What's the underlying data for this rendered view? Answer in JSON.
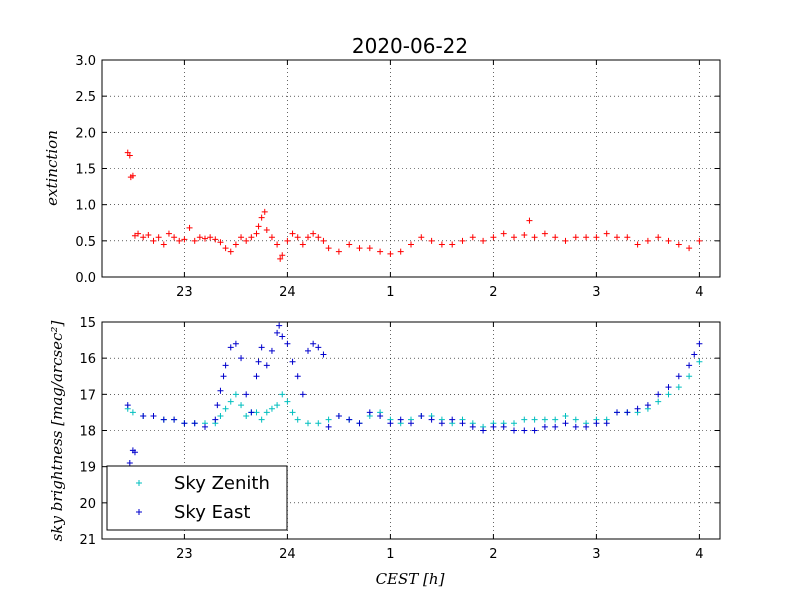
{
  "chart_data": [
    {
      "type": "scatter",
      "title": "2020-06-22",
      "ylabel": "extinction",
      "xlabel": "",
      "xlim": [
        22.2,
        28.2
      ],
      "ylim": [
        0.0,
        3.0
      ],
      "x_ticks": [
        23,
        24,
        25,
        26,
        27,
        28
      ],
      "x_tick_labels": [
        "23",
        "24",
        "1",
        "2",
        "3",
        "4"
      ],
      "y_ticks": [
        0.0,
        0.5,
        1.0,
        1.5,
        2.0,
        2.5,
        3.0
      ],
      "y_tick_labels": [
        "0.0",
        "0.5",
        "1.0",
        "1.5",
        "2.0",
        "2.5",
        "3.0"
      ],
      "grid": true,
      "marker": "+",
      "series": [
        {
          "color": "#ff0000",
          "x": [
            22.45,
            22.47,
            22.48,
            22.5,
            22.52,
            22.55,
            22.6,
            22.65,
            22.7,
            22.75,
            22.8,
            22.85,
            22.9,
            22.95,
            23.0,
            23.05,
            23.1,
            23.15,
            23.2,
            23.25,
            23.3,
            23.35,
            23.4,
            23.45,
            23.5,
            23.55,
            23.6,
            23.65,
            23.7,
            23.72,
            23.75,
            23.78,
            23.8,
            23.85,
            23.9,
            23.93,
            23.95,
            24.0,
            24.05,
            24.1,
            24.15,
            24.2,
            24.25,
            24.3,
            24.35,
            24.4,
            24.5,
            24.6,
            24.7,
            24.8,
            24.9,
            25.0,
            25.1,
            25.2,
            25.3,
            25.4,
            25.5,
            25.6,
            25.7,
            25.8,
            25.9,
            26.0,
            26.1,
            26.2,
            26.3,
            26.35,
            26.4,
            26.5,
            26.6,
            26.7,
            26.8,
            26.9,
            27.0,
            27.1,
            27.2,
            27.3,
            27.4,
            27.5,
            27.6,
            27.7,
            27.8,
            27.9,
            28.0
          ],
          "y": [
            1.72,
            1.68,
            1.38,
            1.4,
            0.57,
            0.6,
            0.55,
            0.58,
            0.5,
            0.55,
            0.45,
            0.6,
            0.55,
            0.5,
            0.52,
            0.68,
            0.5,
            0.55,
            0.53,
            0.55,
            0.52,
            0.48,
            0.4,
            0.35,
            0.45,
            0.55,
            0.5,
            0.55,
            0.6,
            0.7,
            0.82,
            0.9,
            0.65,
            0.55,
            0.45,
            0.25,
            0.3,
            0.5,
            0.6,
            0.55,
            0.45,
            0.55,
            0.6,
            0.55,
            0.5,
            0.4,
            0.35,
            0.45,
            0.4,
            0.4,
            0.35,
            0.32,
            0.35,
            0.45,
            0.55,
            0.5,
            0.45,
            0.45,
            0.5,
            0.55,
            0.5,
            0.55,
            0.6,
            0.55,
            0.58,
            0.78,
            0.55,
            0.6,
            0.55,
            0.5,
            0.55,
            0.55,
            0.55,
            0.6,
            0.55,
            0.55,
            0.45,
            0.5,
            0.55,
            0.5,
            0.45,
            0.4,
            0.5
          ]
        }
      ]
    },
    {
      "type": "scatter",
      "title": "",
      "ylabel": "sky brightness [mag/arcsec²]",
      "xlabel": "CEST [h]",
      "xlim": [
        22.2,
        28.2
      ],
      "ylim": [
        21,
        15
      ],
      "inverted_y": true,
      "x_ticks": [
        23,
        24,
        25,
        26,
        27,
        28
      ],
      "x_tick_labels": [
        "23",
        "24",
        "1",
        "2",
        "3",
        "4"
      ],
      "y_ticks": [
        15,
        16,
        17,
        18,
        19,
        20,
        21
      ],
      "y_tick_labels": [
        "15",
        "16",
        "17",
        "18",
        "19",
        "20",
        "21"
      ],
      "grid": true,
      "marker": "+",
      "legend_position": "lower-left",
      "series": [
        {
          "name": "Sky Zenith",
          "color": "#00bfbf",
          "x": [
            22.45,
            22.5,
            22.6,
            22.7,
            22.8,
            22.9,
            23.0,
            23.1,
            23.2,
            23.3,
            23.35,
            23.4,
            23.45,
            23.5,
            23.55,
            23.6,
            23.65,
            23.7,
            23.75,
            23.8,
            23.85,
            23.9,
            23.95,
            24.0,
            24.05,
            24.1,
            24.2,
            24.3,
            24.4,
            24.5,
            24.6,
            24.7,
            24.8,
            24.9,
            25.0,
            25.1,
            25.2,
            25.3,
            25.4,
            25.5,
            25.6,
            25.7,
            25.8,
            25.9,
            26.0,
            26.1,
            26.2,
            26.3,
            26.4,
            26.5,
            26.6,
            26.7,
            26.8,
            26.9,
            27.0,
            27.1,
            27.2,
            27.3,
            27.4,
            27.5,
            27.6,
            27.7,
            27.8,
            27.9,
            28.0
          ],
          "y": [
            17.4,
            17.5,
            17.6,
            17.6,
            17.7,
            17.7,
            17.8,
            17.8,
            17.8,
            17.8,
            17.6,
            17.4,
            17.2,
            17.0,
            17.3,
            17.6,
            17.5,
            17.5,
            17.7,
            17.5,
            17.4,
            17.3,
            17.0,
            17.2,
            17.5,
            17.7,
            17.8,
            17.8,
            17.7,
            17.6,
            17.7,
            17.8,
            17.6,
            17.5,
            17.7,
            17.8,
            17.7,
            17.6,
            17.6,
            17.7,
            17.8,
            17.7,
            17.8,
            17.9,
            17.8,
            17.8,
            17.8,
            17.7,
            17.7,
            17.7,
            17.7,
            17.6,
            17.7,
            17.8,
            17.7,
            17.7,
            17.5,
            17.5,
            17.5,
            17.4,
            17.2,
            17.0,
            16.8,
            16.5,
            16.1
          ]
        },
        {
          "name": "Sky East",
          "color": "#0000cc",
          "x": [
            22.45,
            22.47,
            22.5,
            22.52,
            22.6,
            22.7,
            22.8,
            22.9,
            23.0,
            23.1,
            23.2,
            23.3,
            23.32,
            23.35,
            23.38,
            23.4,
            23.45,
            23.5,
            23.55,
            23.6,
            23.65,
            23.7,
            23.72,
            23.75,
            23.8,
            23.85,
            23.9,
            23.92,
            23.95,
            24.0,
            24.05,
            24.1,
            24.15,
            24.2,
            24.25,
            24.3,
            24.35,
            24.4,
            24.5,
            24.6,
            24.7,
            24.8,
            24.9,
            25.0,
            25.1,
            25.2,
            25.3,
            25.4,
            25.5,
            25.6,
            25.7,
            25.8,
            25.9,
            26.0,
            26.1,
            26.2,
            26.3,
            26.4,
            26.5,
            26.6,
            26.7,
            26.8,
            26.9,
            27.0,
            27.1,
            27.2,
            27.3,
            27.4,
            27.5,
            27.6,
            27.7,
            27.8,
            27.9,
            27.95,
            28.0
          ],
          "y": [
            17.3,
            18.9,
            18.55,
            18.6,
            17.6,
            17.6,
            17.7,
            17.7,
            17.8,
            17.8,
            17.9,
            17.7,
            17.3,
            16.9,
            16.5,
            16.2,
            15.7,
            15.6,
            16.0,
            17.0,
            17.5,
            16.5,
            16.1,
            15.7,
            16.2,
            15.8,
            15.3,
            15.1,
            15.4,
            15.6,
            16.1,
            16.5,
            17.0,
            15.8,
            15.6,
            15.7,
            15.9,
            17.9,
            17.6,
            17.7,
            17.8,
            17.5,
            17.6,
            17.8,
            17.7,
            17.8,
            17.6,
            17.7,
            17.8,
            17.7,
            17.8,
            17.9,
            18.0,
            17.9,
            17.9,
            18.0,
            18.0,
            18.0,
            17.9,
            17.9,
            17.8,
            17.9,
            17.9,
            17.8,
            17.8,
            17.5,
            17.5,
            17.4,
            17.3,
            17.0,
            16.8,
            16.5,
            16.2,
            15.9,
            15.6
          ]
        }
      ]
    }
  ]
}
